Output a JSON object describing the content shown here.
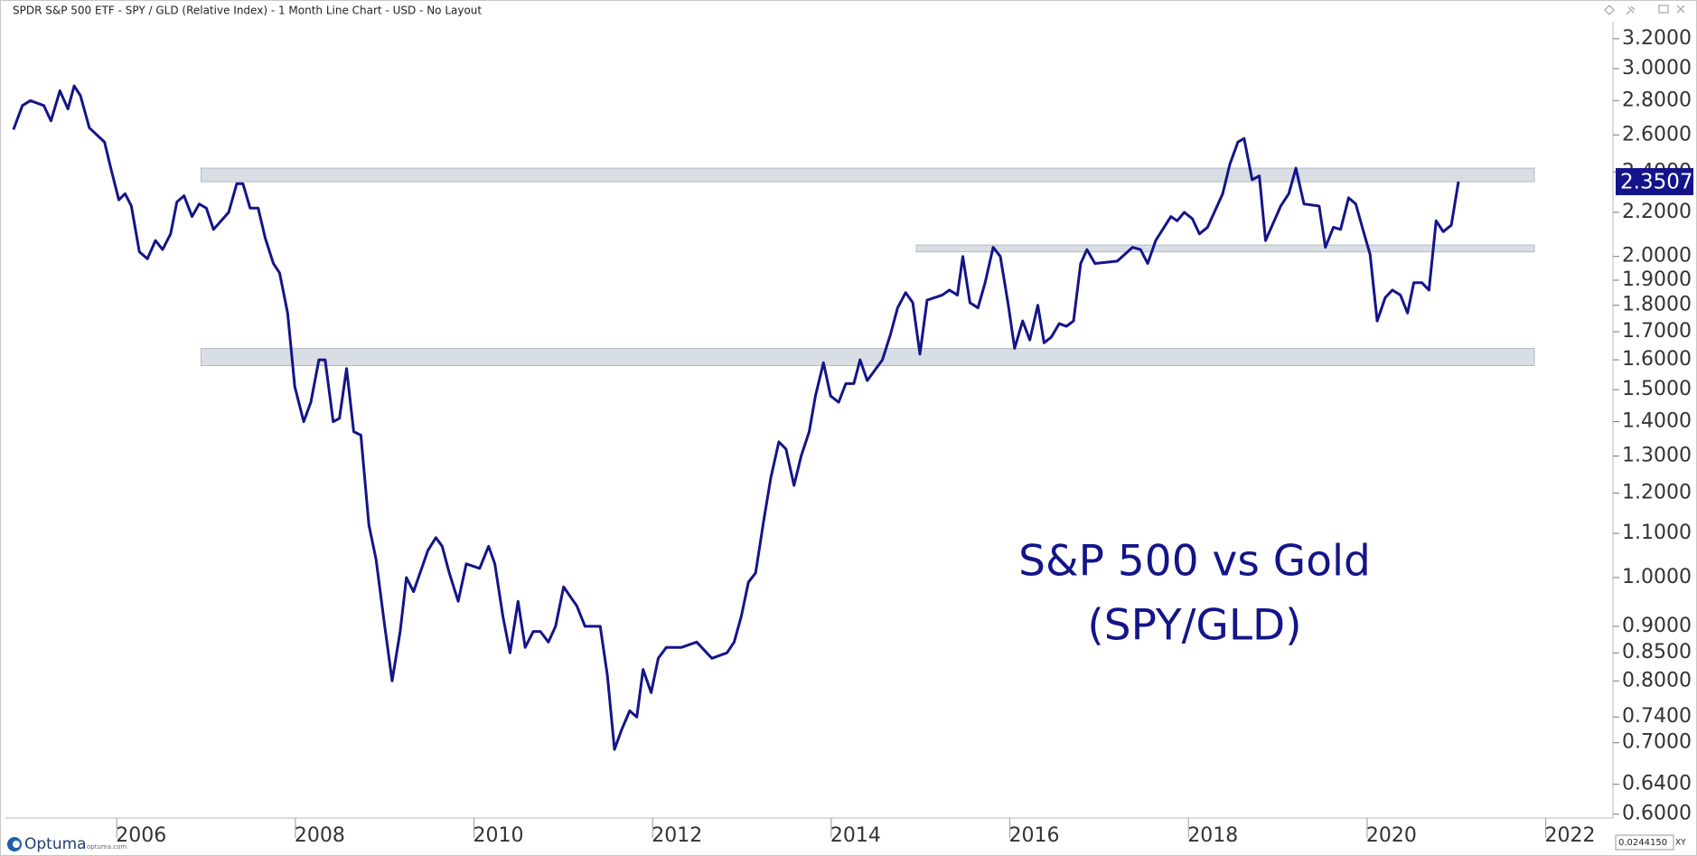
{
  "header": {
    "title": "SPDR S&P 500 ETF - SPY / GLD (Relative Index) - 1 Month Line Chart - USD - No Layout"
  },
  "chart_data": {
    "type": "line",
    "log": true,
    "annotation": [
      "S&P 500 vs Gold",
      "(SPY/GLD)"
    ],
    "xlim": [
      2004.48,
      2022.48
    ],
    "xticks": [
      2006,
      2008,
      2010,
      2012,
      2014,
      2016,
      2018,
      2020,
      2022
    ],
    "ylim": [
      0.595,
      3.32
    ],
    "yticks": [
      {
        "value": 3.2,
        "label": "3.2000"
      },
      {
        "value": 3.0,
        "label": "3.0000"
      },
      {
        "value": 2.8,
        "label": "2.8000"
      },
      {
        "value": 2.6,
        "label": "2.6000"
      },
      {
        "value": 2.4,
        "label": "2.4000"
      },
      {
        "value": 2.2,
        "label": "2.2000"
      },
      {
        "value": 2.0,
        "label": "2.0000"
      },
      {
        "value": 1.9,
        "label": "1.9000"
      },
      {
        "value": 1.8,
        "label": "1.8000"
      },
      {
        "value": 1.7,
        "label": "1.7000"
      },
      {
        "value": 1.6,
        "label": "1.6000"
      },
      {
        "value": 1.5,
        "label": "1.5000"
      },
      {
        "value": 1.4,
        "label": "1.4000"
      },
      {
        "value": 1.3,
        "label": "1.3000"
      },
      {
        "value": 1.2,
        "label": "1.2000"
      },
      {
        "value": 1.1,
        "label": "1.1000"
      },
      {
        "value": 1.0,
        "label": "1.0000"
      },
      {
        "value": 0.9,
        "label": "0.9000"
      },
      {
        "value": 0.85,
        "label": "0.8500"
      },
      {
        "value": 0.8,
        "label": "0.8000"
      },
      {
        "value": 0.74,
        "label": "0.7400"
      },
      {
        "value": 0.7,
        "label": "0.7000"
      },
      {
        "value": 0.64,
        "label": "0.6400"
      },
      {
        "value": 0.6,
        "label": "0.6000"
      }
    ],
    "zone_color": "#d9dde4",
    "zones": [
      {
        "x": [
          2006.67,
          2021.6
        ],
        "y": [
          2.35,
          2.42
        ]
      },
      {
        "x": [
          2014.68,
          2021.6
        ],
        "y": [
          2.02,
          2.05
        ]
      },
      {
        "x": [
          2006.67,
          2021.6
        ],
        "y": [
          1.58,
          1.64
        ]
      }
    ],
    "series": [
      {
        "color": "#14148a",
        "x": [
          2004.57,
          2004.67,
          2004.76,
          2004.91,
          2004.99,
          2005.09,
          2005.18,
          2005.25,
          2005.32,
          2005.42,
          2005.59,
          2005.66,
          2005.75,
          2005.82,
          2005.89,
          2005.98,
          2006.07,
          2006.16,
          2006.24,
          2006.33,
          2006.4,
          2006.48,
          2006.57,
          2006.65,
          2006.73,
          2006.81,
          2006.98,
          2007.07,
          2007.14,
          2007.22,
          2007.31,
          2007.39,
          2007.48,
          2007.55,
          2007.64,
          2007.72,
          2007.82,
          2007.9,
          2007.99,
          2008.06,
          2008.15,
          2008.22,
          2008.3,
          2008.38,
          2008.46,
          2008.55,
          2008.63,
          2008.72,
          2008.81,
          2008.9,
          2008.97,
          2009.05,
          2009.21,
          2009.3,
          2009.37,
          2009.45,
          2009.55,
          2009.64,
          2009.79,
          2009.89,
          2009.96,
          2010.05,
          2010.13,
          2010.22,
          2010.3,
          2010.39,
          2010.47,
          2010.56,
          2010.64,
          2010.73,
          2010.88,
          2010.97,
          2011.14,
          2011.22,
          2011.3,
          2011.38,
          2011.47,
          2011.55,
          2011.62,
          2011.71,
          2011.79,
          2011.88,
          2012.05,
          2012.22,
          2012.39,
          2012.56,
          2012.64,
          2012.72,
          2012.8,
          2012.88,
          2012.97,
          2013.05,
          2013.14,
          2013.22,
          2013.31,
          2013.39,
          2013.48,
          2013.55,
          2013.64,
          2013.72,
          2013.81,
          2013.89,
          2013.98,
          2014.05,
          2014.13,
          2014.3,
          2014.39,
          2014.47,
          2014.56,
          2014.64,
          2014.72,
          2014.8,
          2014.97,
          2015.05,
          2015.14,
          2015.2,
          2015.28,
          2015.37,
          2015.45,
          2015.54,
          2015.62,
          2015.71,
          2015.78,
          2015.87,
          2015.95,
          2016.04,
          2016.11,
          2016.19,
          2016.28,
          2016.36,
          2016.44,
          2016.52,
          2016.59,
          2016.68,
          2016.93,
          2017.1,
          2017.19,
          2017.27,
          2017.36,
          2017.53,
          2017.6,
          2017.68,
          2017.77,
          2017.85,
          2017.94,
          2018.11,
          2018.19,
          2018.28,
          2018.35,
          2018.44,
          2018.52,
          2018.59,
          2018.76,
          2018.85,
          2018.93,
          2019.02,
          2019.19,
          2019.26,
          2019.35,
          2019.43,
          2019.52,
          2019.6,
          2019.68,
          2019.76,
          2019.84,
          2019.93,
          2020.01,
          2020.1,
          2020.18,
          2020.25,
          2020.34,
          2020.42,
          2020.5,
          2020.58,
          2020.67,
          2020.75
        ],
        "values": [
          2.63,
          2.77,
          2.8,
          2.77,
          2.68,
          2.86,
          2.75,
          2.89,
          2.83,
          2.64,
          2.56,
          2.42,
          2.26,
          2.29,
          2.23,
          2.02,
          1.99,
          2.07,
          2.03,
          2.1,
          2.25,
          2.28,
          2.18,
          2.24,
          2.22,
          2.12,
          2.2,
          2.34,
          2.34,
          2.22,
          2.22,
          2.08,
          1.97,
          1.93,
          1.77,
          1.51,
          1.4,
          1.46,
          1.6,
          1.6,
          1.4,
          1.41,
          1.57,
          1.37,
          1.36,
          1.12,
          1.04,
          0.91,
          0.8,
          0.89,
          1.0,
          0.97,
          1.06,
          1.09,
          1.07,
          1.01,
          0.95,
          1.03,
          1.02,
          1.07,
          1.03,
          0.92,
          0.85,
          0.95,
          0.86,
          0.89,
          0.89,
          0.87,
          0.9,
          0.98,
          0.94,
          0.9,
          0.9,
          0.81,
          0.69,
          0.72,
          0.75,
          0.74,
          0.82,
          0.78,
          0.84,
          0.86,
          0.86,
          0.87,
          0.84,
          0.85,
          0.87,
          0.92,
          0.99,
          1.01,
          1.13,
          1.24,
          1.34,
          1.32,
          1.22,
          1.3,
          1.37,
          1.48,
          1.59,
          1.48,
          1.46,
          1.52,
          1.52,
          1.6,
          1.53,
          1.6,
          1.69,
          1.79,
          1.85,
          1.81,
          1.62,
          1.82,
          1.84,
          1.86,
          1.84,
          2.0,
          1.81,
          1.79,
          1.89,
          2.04,
          2.0,
          1.8,
          1.64,
          1.74,
          1.67,
          1.8,
          1.66,
          1.68,
          1.73,
          1.72,
          1.74,
          1.97,
          2.03,
          1.97,
          1.98,
          2.04,
          2.03,
          1.97,
          2.07,
          2.18,
          2.16,
          2.2,
          2.17,
          2.1,
          2.13,
          2.29,
          2.44,
          2.56,
          2.58,
          2.36,
          2.38,
          2.07,
          2.23,
          2.29,
          2.42,
          2.24,
          2.23,
          2.04,
          2.13,
          2.12,
          2.27,
          2.24,
          2.12,
          2.01,
          1.74,
          1.83,
          1.86,
          1.84,
          1.77,
          1.89,
          1.89,
          1.86,
          2.16,
          2.11,
          2.14,
          2.3507
        ]
      }
    ]
  },
  "footer": {
    "brand": "Optuma",
    "site": "optuma.com",
    "readout": "0.0244150",
    "mode": "XY"
  }
}
